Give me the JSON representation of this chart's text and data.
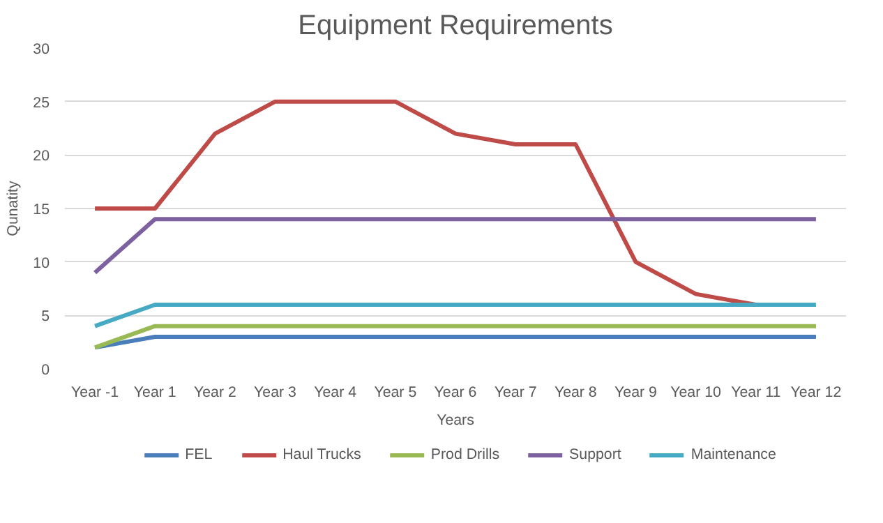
{
  "chart_data": {
    "type": "line",
    "title": "Equipment Requirements",
    "xlabel": "Years",
    "ylabel": "Qunatity",
    "categories": [
      "Year -1",
      "Year 1",
      "Year 2",
      "Year 3",
      "Year 4",
      "Year 5",
      "Year 6",
      "Year 7",
      "Year 8",
      "Year 9",
      "Year 10",
      "Year 11",
      "Year 12"
    ],
    "series": [
      {
        "name": "FEL",
        "color": "#4a7ebb",
        "values": [
          2,
          3,
          3,
          3,
          3,
          3,
          3,
          3,
          3,
          3,
          3,
          3,
          3
        ]
      },
      {
        "name": "Haul Trucks",
        "color": "#be4b48",
        "values": [
          15,
          15,
          22,
          25,
          25,
          25,
          22,
          21,
          21,
          10,
          7,
          6,
          null
        ]
      },
      {
        "name": "Prod Drills",
        "color": "#98b954",
        "values": [
          2,
          4,
          4,
          4,
          4,
          4,
          4,
          4,
          4,
          4,
          4,
          4,
          4
        ]
      },
      {
        "name": "Support",
        "color": "#7d60a0",
        "values": [
          9,
          14,
          14,
          14,
          14,
          14,
          14,
          14,
          14,
          14,
          14,
          14,
          14
        ]
      },
      {
        "name": "Maintenance",
        "color": "#46aac5",
        "values": [
          4,
          6,
          6,
          6,
          6,
          6,
          6,
          6,
          6,
          6,
          6,
          6,
          6
        ]
      }
    ],
    "ylim": [
      0,
      30
    ],
    "yticks": [
      0,
      5,
      10,
      15,
      20,
      25,
      30
    ],
    "grid": "y",
    "legend": "bottom",
    "marker": "none",
    "line_style": "solid"
  }
}
